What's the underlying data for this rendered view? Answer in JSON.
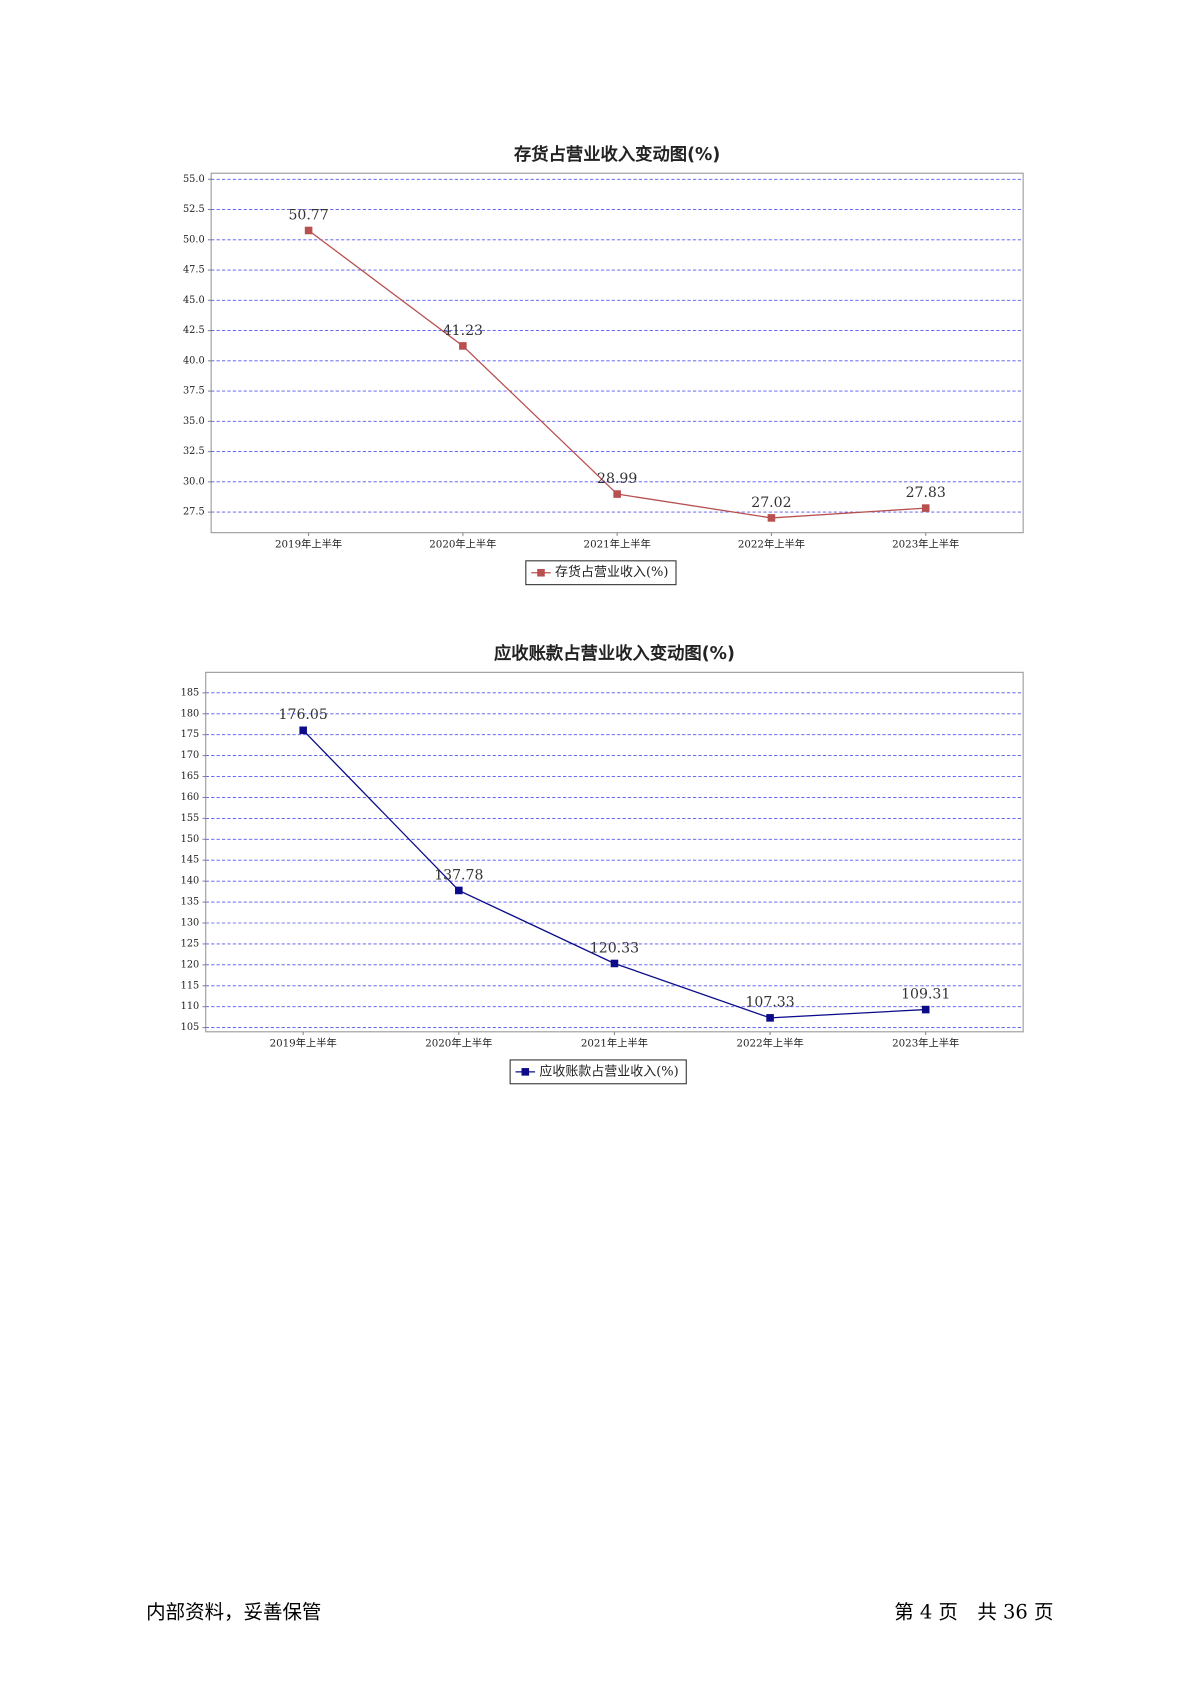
{
  "chart_data": [
    {
      "type": "line",
      "title": "存货占营业收入变动图(%)",
      "categories": [
        "2019年上半年",
        "2020年上半年",
        "2021年上半年",
        "2022年上半年",
        "2023年上半年"
      ],
      "series": [
        {
          "name": "存货占营业收入(%)",
          "color": "#b8504f",
          "values": [
            50.77,
            41.23,
            28.99,
            27.02,
            27.83
          ]
        }
      ],
      "ylim": [
        25.8,
        55.5
      ],
      "yticks": [
        27.5,
        {
          "value": 30,
          "label": "30.0"
        },
        32.5,
        {
          "value": 35,
          "label": "35.0"
        },
        37.5,
        {
          "value": 40,
          "label": "40.0"
        },
        42.5,
        {
          "value": 45,
          "label": "45.0"
        },
        47.5,
        {
          "value": 50,
          "label": "50.0"
        },
        52.5,
        {
          "value": 55,
          "label": "55.0"
        }
      ],
      "grid": true
    },
    {
      "type": "line",
      "title": "应收账款占营业收入变动图(%)",
      "categories": [
        "2019年上半年",
        "2020年上半年",
        "2021年上半年",
        "2022年上半年",
        "2023年上半年"
      ],
      "series": [
        {
          "name": "应收账款占营业收入(%)",
          "color": "#0c0c8a",
          "values": [
            176.05,
            137.78,
            120.33,
            107.33,
            109.31
          ]
        }
      ],
      "ylim": [
        104,
        189.9
      ],
      "yticks": [
        105,
        110,
        115,
        120,
        125,
        130,
        135,
        140,
        145,
        150,
        155,
        160,
        165,
        170,
        175,
        180,
        185
      ],
      "grid": true
    }
  ],
  "footer": {
    "left": "内部资料，妥善保管",
    "right": "第 4 页　共 36 页"
  }
}
